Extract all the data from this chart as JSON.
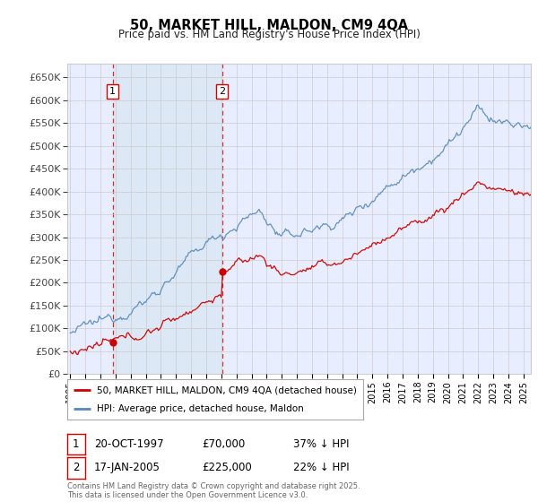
{
  "title": "50, MARKET HILL, MALDON, CM9 4QA",
  "subtitle": "Price paid vs. HM Land Registry's House Price Index (HPI)",
  "sale1_date": "20-OCT-1997",
  "sale1_price": 70000,
  "sale1_label": "37% ↓ HPI",
  "sale2_date": "17-JAN-2005",
  "sale2_price": 225000,
  "sale2_label": "22% ↓ HPI",
  "sale1_year": 1997.8,
  "sale2_year": 2005.05,
  "ylabel_color": "#444444",
  "line_color_red": "#cc0000",
  "line_color_blue": "#5588bb",
  "bg_color": "#e8eeff",
  "bg_color_between": "#dce8f5",
  "grid_color": "#cccccc",
  "footnote": "Contains HM Land Registry data © Crown copyright and database right 2025.\nThis data is licensed under the Open Government Licence v3.0.",
  "legend_label_red": "50, MARKET HILL, MALDON, CM9 4QA (detached house)",
  "legend_label_blue": "HPI: Average price, detached house, Maldon",
  "ylim_max": 680000,
  "ylim_min": 0,
  "xlim_min": 1994.8,
  "xlim_max": 2025.5
}
